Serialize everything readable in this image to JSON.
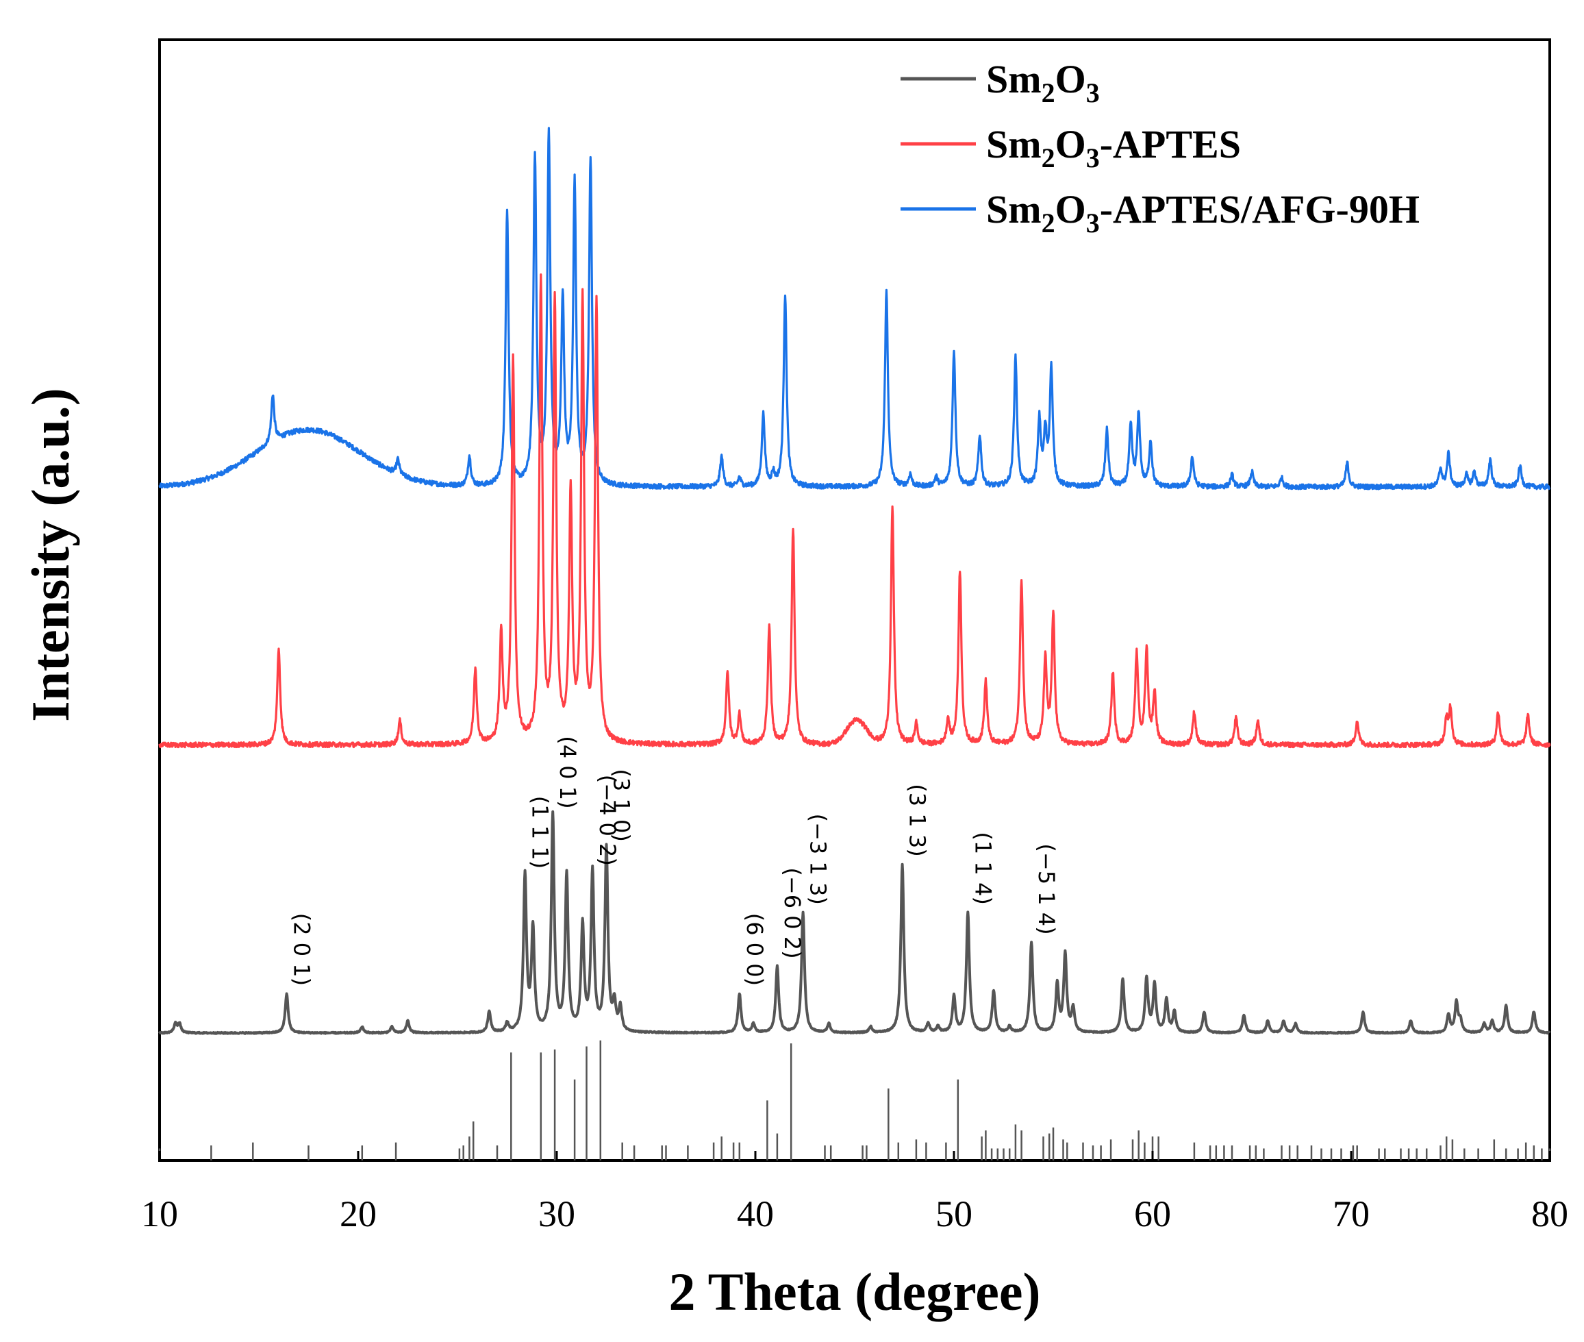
{
  "chart_data": {
    "type": "line",
    "title": "",
    "xlabel": "2 Theta (degree)",
    "ylabel": "Intensity (a.u.)",
    "xlim": [
      10,
      80
    ],
    "xticks": [
      10,
      20,
      30,
      40,
      50,
      60,
      70,
      80
    ],
    "xtick_labels": [
      "10",
      "20",
      "30",
      "40",
      "50",
      "60",
      "70",
      "80"
    ],
    "yticks": [],
    "grid": false,
    "legend_position": "top-right",
    "legend": [
      {
        "name": "Sm2O3",
        "base": "Sm",
        "sub1": "2",
        "mid": "O",
        "sub2": "3",
        "suffix": "",
        "color": "#555555"
      },
      {
        "name": "Sm2O3-APTES",
        "base": "Sm",
        "sub1": "2",
        "mid": "O",
        "sub2": "3",
        "suffix": "-APTES",
        "color": "#ff4046"
      },
      {
        "name": "Sm2O3-APTES/AFG-90H",
        "base": "Sm",
        "sub1": "2",
        "mid": "O",
        "sub2": "3",
        "suffix": "-APTES/AFG-90H",
        "color": "#1a73e8"
      }
    ],
    "series": [
      {
        "name": "Sm2O3-APTES/AFG-90H",
        "color": "#1a73e8",
        "offset": 1.82,
        "hump": {
          "center": 17.5,
          "width": 2.6,
          "height": 0.19
        },
        "peaks": [
          [
            15.7,
            0.16
          ],
          [
            22.0,
            0.05
          ],
          [
            25.6,
            0.1
          ],
          [
            27.5,
            0.92
          ],
          [
            28.9,
            1.09
          ],
          [
            29.6,
            1.16
          ],
          [
            30.3,
            0.61
          ],
          [
            30.9,
            1.0
          ],
          [
            31.7,
            1.08
          ],
          [
            38.3,
            0.1
          ],
          [
            39.2,
            0.03
          ],
          [
            40.4,
            0.24
          ],
          [
            40.9,
            0.04
          ],
          [
            41.5,
            0.64
          ],
          [
            46.6,
            0.65
          ],
          [
            47.8,
            0.04
          ],
          [
            49.1,
            0.03
          ],
          [
            50.0,
            0.45
          ],
          [
            51.3,
            0.17
          ],
          [
            53.1,
            0.43
          ],
          [
            54.3,
            0.22
          ],
          [
            54.6,
            0.17
          ],
          [
            54.9,
            0.39
          ],
          [
            57.7,
            0.19
          ],
          [
            58.9,
            0.2
          ],
          [
            59.3,
            0.24
          ],
          [
            59.9,
            0.15
          ],
          [
            62.0,
            0.1
          ],
          [
            64.0,
            0.04
          ],
          [
            65.0,
            0.05
          ],
          [
            66.5,
            0.03
          ],
          [
            69.8,
            0.08
          ],
          [
            74.5,
            0.06
          ],
          [
            74.9,
            0.11
          ],
          [
            75.8,
            0.04
          ],
          [
            76.2,
            0.05
          ],
          [
            77.0,
            0.09
          ],
          [
            78.5,
            0.07
          ]
        ]
      },
      {
        "name": "Sm2O3-APTES",
        "color": "#ff4046",
        "offset": 0.96,
        "hump": {
          "center": 45.1,
          "width": 0.5,
          "height": 0.08
        },
        "peaks": [
          [
            16.0,
            0.32
          ],
          [
            22.1,
            0.08
          ],
          [
            25.9,
            0.25
          ],
          [
            27.2,
            0.36
          ],
          [
            27.8,
            1.28
          ],
          [
            29.2,
            1.53
          ],
          [
            29.9,
            1.46
          ],
          [
            30.7,
            0.82
          ],
          [
            31.3,
            1.46
          ],
          [
            32.0,
            1.46
          ],
          [
            38.6,
            0.24
          ],
          [
            39.2,
            0.1
          ],
          [
            40.7,
            0.39
          ],
          [
            41.9,
            0.72
          ],
          [
            46.9,
            0.79
          ],
          [
            48.1,
            0.07
          ],
          [
            49.7,
            0.08
          ],
          [
            50.3,
            0.58
          ],
          [
            51.6,
            0.21
          ],
          [
            53.4,
            0.55
          ],
          [
            54.6,
            0.28
          ],
          [
            55.0,
            0.43
          ],
          [
            58.0,
            0.24
          ],
          [
            59.2,
            0.3
          ],
          [
            59.7,
            0.31
          ],
          [
            60.1,
            0.17
          ],
          [
            62.1,
            0.11
          ],
          [
            64.2,
            0.09
          ],
          [
            65.3,
            0.08
          ],
          [
            70.3,
            0.08
          ],
          [
            74.8,
            0.08
          ],
          [
            75.0,
            0.12
          ],
          [
            77.4,
            0.11
          ],
          [
            78.9,
            0.1
          ]
        ]
      },
      {
        "name": "Sm2O3",
        "color": "#555555",
        "offset": 0.0,
        "peaks": [
          [
            10.8,
            0.03
          ],
          [
            11.0,
            0.03
          ],
          [
            16.4,
            0.13
          ],
          [
            20.2,
            0.02
          ],
          [
            21.7,
            0.02
          ],
          [
            22.5,
            0.04
          ],
          [
            26.6,
            0.07
          ],
          [
            27.5,
            0.03
          ],
          [
            28.4,
            0.52
          ],
          [
            28.8,
            0.34
          ],
          [
            29.8,
            0.72
          ],
          [
            30.5,
            0.52
          ],
          [
            31.3,
            0.35
          ],
          [
            31.8,
            0.53
          ],
          [
            32.5,
            0.61
          ],
          [
            32.9,
            0.09
          ],
          [
            33.2,
            0.08
          ],
          [
            39.2,
            0.13
          ],
          [
            39.9,
            0.03
          ],
          [
            41.1,
            0.22
          ],
          [
            42.4,
            0.4
          ],
          [
            43.7,
            0.03
          ],
          [
            45.8,
            0.02
          ],
          [
            47.4,
            0.56
          ],
          [
            48.7,
            0.03
          ],
          [
            49.2,
            0.02
          ],
          [
            50.0,
            0.12
          ],
          [
            50.7,
            0.4
          ],
          [
            52.0,
            0.14
          ],
          [
            52.8,
            0.02
          ],
          [
            53.9,
            0.3
          ],
          [
            55.2,
            0.16
          ],
          [
            55.6,
            0.26
          ],
          [
            56.0,
            0.08
          ],
          [
            58.5,
            0.18
          ],
          [
            59.7,
            0.18
          ],
          [
            60.1,
            0.16
          ],
          [
            60.7,
            0.11
          ],
          [
            61.1,
            0.07
          ],
          [
            62.6,
            0.07
          ],
          [
            64.6,
            0.06
          ],
          [
            65.8,
            0.04
          ],
          [
            66.6,
            0.04
          ],
          [
            67.2,
            0.03
          ],
          [
            70.6,
            0.07
          ],
          [
            73.0,
            0.04
          ],
          [
            74.9,
            0.06
          ],
          [
            75.3,
            0.1
          ],
          [
            75.5,
            0.04
          ],
          [
            76.7,
            0.03
          ],
          [
            77.1,
            0.04
          ],
          [
            77.8,
            0.09
          ],
          [
            79.2,
            0.07
          ]
        ]
      }
    ],
    "reference_bars": [
      [
        10.0,
        0.04
      ],
      [
        12.6,
        0.05
      ],
      [
        14.7,
        0.06
      ],
      [
        17.5,
        0.05
      ],
      [
        20.2,
        0.05
      ],
      [
        21.9,
        0.06
      ],
      [
        25.1,
        0.04
      ],
      [
        25.3,
        0.05
      ],
      [
        25.6,
        0.08
      ],
      [
        25.8,
        0.13
      ],
      [
        27.0,
        0.05
      ],
      [
        27.7,
        0.36
      ],
      [
        29.2,
        0.36
      ],
      [
        29.9,
        0.37
      ],
      [
        30.9,
        0.27
      ],
      [
        31.5,
        0.38
      ],
      [
        32.2,
        0.4
      ],
      [
        33.3,
        0.06
      ],
      [
        33.9,
        0.05
      ],
      [
        35.3,
        0.05
      ],
      [
        35.5,
        0.05
      ],
      [
        36.6,
        0.05
      ],
      [
        37.9,
        0.06
      ],
      [
        38.3,
        0.08
      ],
      [
        38.9,
        0.06
      ],
      [
        39.2,
        0.06
      ],
      [
        40.6,
        0.2
      ],
      [
        41.1,
        0.09
      ],
      [
        41.8,
        0.39
      ],
      [
        43.5,
        0.05
      ],
      [
        43.8,
        0.05
      ],
      [
        45.4,
        0.05
      ],
      [
        45.6,
        0.05
      ],
      [
        46.7,
        0.24
      ],
      [
        47.2,
        0.06
      ],
      [
        48.1,
        0.07
      ],
      [
        48.6,
        0.06
      ],
      [
        49.6,
        0.06
      ],
      [
        50.2,
        0.27
      ],
      [
        51.4,
        0.08
      ],
      [
        51.6,
        0.1
      ],
      [
        51.9,
        0.04
      ],
      [
        52.2,
        0.04
      ],
      [
        52.5,
        0.04
      ],
      [
        52.8,
        0.04
      ],
      [
        53.1,
        0.12
      ],
      [
        53.4,
        0.1
      ],
      [
        54.5,
        0.08
      ],
      [
        54.8,
        0.09
      ],
      [
        55.0,
        0.11
      ],
      [
        55.5,
        0.07
      ],
      [
        55.7,
        0.06
      ],
      [
        56.5,
        0.06
      ],
      [
        57.0,
        0.05
      ],
      [
        57.4,
        0.05
      ],
      [
        57.9,
        0.07
      ],
      [
        59.0,
        0.07
      ],
      [
        59.3,
        0.1
      ],
      [
        59.6,
        0.06
      ],
      [
        60.0,
        0.08
      ],
      [
        60.3,
        0.08
      ],
      [
        62.1,
        0.06
      ],
      [
        62.9,
        0.05
      ],
      [
        63.2,
        0.05
      ],
      [
        63.6,
        0.05
      ],
      [
        64.0,
        0.05
      ],
      [
        64.9,
        0.05
      ],
      [
        65.2,
        0.05
      ],
      [
        65.6,
        0.04
      ],
      [
        66.5,
        0.05
      ],
      [
        66.9,
        0.05
      ],
      [
        67.3,
        0.05
      ],
      [
        68.0,
        0.05
      ],
      [
        68.5,
        0.04
      ],
      [
        69.0,
        0.04
      ],
      [
        69.5,
        0.04
      ],
      [
        70.1,
        0.05
      ],
      [
        70.3,
        0.05
      ],
      [
        71.4,
        0.04
      ],
      [
        71.7,
        0.04
      ],
      [
        72.5,
        0.04
      ],
      [
        72.9,
        0.04
      ],
      [
        73.3,
        0.04
      ],
      [
        73.8,
        0.04
      ],
      [
        74.5,
        0.05
      ],
      [
        74.8,
        0.08
      ],
      [
        75.1,
        0.07
      ],
      [
        75.7,
        0.04
      ],
      [
        76.4,
        0.04
      ],
      [
        77.2,
        0.07
      ],
      [
        77.8,
        0.04
      ],
      [
        78.4,
        0.04
      ],
      [
        78.8,
        0.06
      ],
      [
        79.2,
        0.05
      ],
      [
        79.6,
        0.04
      ],
      [
        80.0,
        0.04
      ]
    ],
    "annotations": [
      {
        "text": "(2 0 1)",
        "x": 16.4
      },
      {
        "text": "(1 1 1)",
        "x": 28.4
      },
      {
        "text": "(4 0 1)",
        "x": 29.8
      },
      {
        "text": "(−4 0 2)",
        "x": 31.8
      },
      {
        "text": "(3 1 0)",
        "x": 32.5
      },
      {
        "text": "(6 0 0)",
        "x": 39.2
      },
      {
        "text": "(−6 0 2)",
        "x": 41.1
      },
      {
        "text": "(−3 1 3)",
        "x": 42.4
      },
      {
        "text": "(3 1 3)",
        "x": 47.4
      },
      {
        "text": "(1 1 4)",
        "x": 50.7
      },
      {
        "text": "(−5 1 4)",
        "x": 53.9
      }
    ]
  }
}
